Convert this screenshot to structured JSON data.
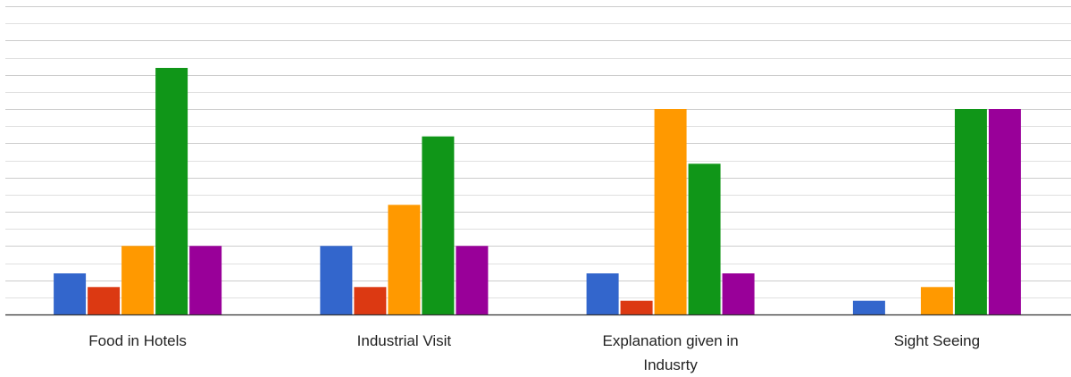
{
  "chart_data": {
    "type": "bar",
    "title": "",
    "xlabel": "",
    "ylabel": "",
    "ylim": [
      0,
      9
    ],
    "categories": [
      "Food in Hotels",
      "Industrial Visit",
      "Explanation given in Indusrty",
      "Sight Seeing"
    ],
    "category_lines": [
      [
        "Food in Hotels"
      ],
      [
        "Industrial Visit"
      ],
      [
        "Explanation given in",
        "Indusrty"
      ],
      [
        "Sight Seeing"
      ]
    ],
    "series": [
      {
        "color": "#3366cc",
        "values": [
          1.2,
          2,
          1.2,
          0.4
        ]
      },
      {
        "color": "#dc3912",
        "values": [
          0.8,
          0.8,
          0.4,
          0
        ]
      },
      {
        "color": "#ff9900",
        "values": [
          2,
          3.2,
          6,
          0.8
        ]
      },
      {
        "color": "#109618",
        "values": [
          7.2,
          5.2,
          4.4,
          6
        ]
      },
      {
        "color": "#990099",
        "values": [
          2,
          2,
          1.2,
          6
        ]
      }
    ],
    "grid": true,
    "legend": "none"
  }
}
